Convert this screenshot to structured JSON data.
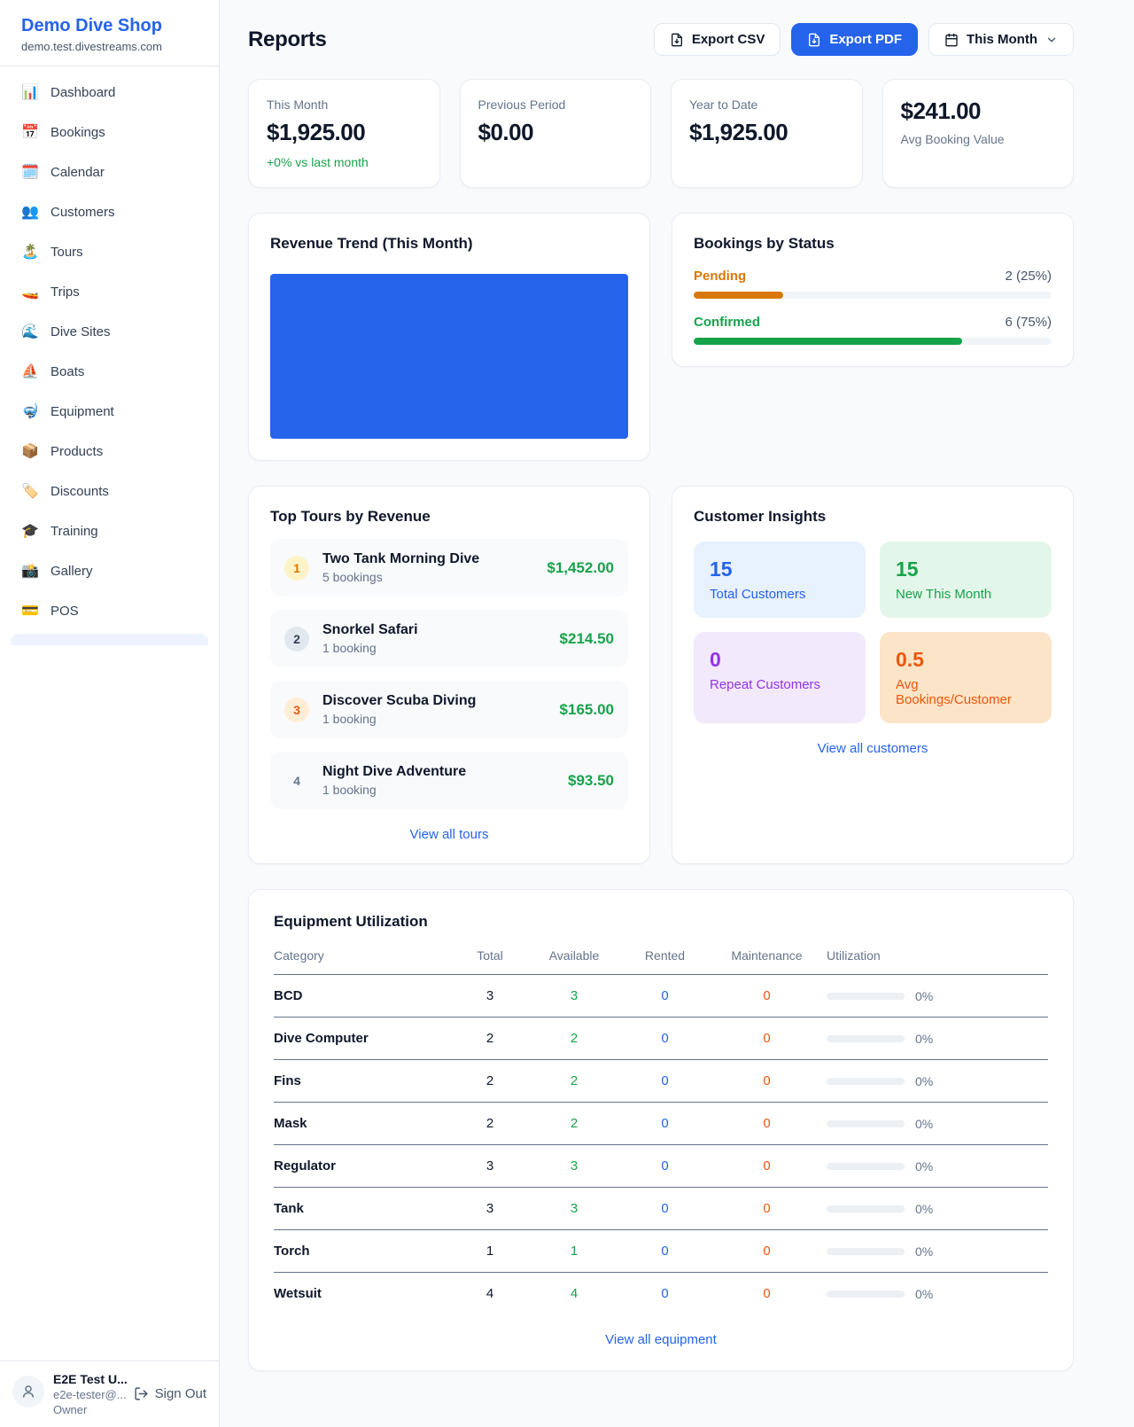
{
  "sidebar": {
    "brand": {
      "name": "Demo Dive Shop",
      "domain": "demo.test.divestreams.com"
    },
    "items": [
      {
        "icon": "📊",
        "label": "Dashboard"
      },
      {
        "icon": "📅",
        "label": "Bookings"
      },
      {
        "icon": "🗓️",
        "label": "Calendar"
      },
      {
        "icon": "👥",
        "label": "Customers"
      },
      {
        "icon": "🏝️",
        "label": "Tours"
      },
      {
        "icon": "🚤",
        "label": "Trips"
      },
      {
        "icon": "🌊",
        "label": "Dive Sites"
      },
      {
        "icon": "⛵",
        "label": "Boats"
      },
      {
        "icon": "🤿",
        "label": "Equipment"
      },
      {
        "icon": "📦",
        "label": "Products"
      },
      {
        "icon": "🏷️",
        "label": "Discounts"
      },
      {
        "icon": "🎓",
        "label": "Training"
      },
      {
        "icon": "📸",
        "label": "Gallery"
      },
      {
        "icon": "💳",
        "label": "POS"
      }
    ],
    "user": {
      "name": "E2E Test U...",
      "email": "e2e-tester@...",
      "role": "Owner",
      "sign_out_label": "Sign Out"
    }
  },
  "header": {
    "title": "Reports",
    "export_csv_label": "Export CSV",
    "export_pdf_label": "Export PDF",
    "period_label": "This Month"
  },
  "stats": [
    {
      "label": "This Month",
      "value": "$1,925.00",
      "delta": "+0% vs last month"
    },
    {
      "label": "Previous Period",
      "value": "$0.00"
    },
    {
      "label": "Year to Date",
      "value": "$1,925.00"
    },
    {
      "label": "Avg Booking Value",
      "value": "$241.00"
    }
  ],
  "revenue_trend": {
    "title": "Revenue Trend (This Month)"
  },
  "chart_data": {
    "type": "bar",
    "title": "Revenue Trend (This Month)",
    "categories": [
      "This Month"
    ],
    "values": [
      1925
    ],
    "unit": "USD",
    "bar_color": "#2563eb",
    "xlabel": "",
    "ylabel": "",
    "note": "Single solid full-width blue bar fills the entire plot area; no axes, ticks or labels are rendered"
  },
  "bookings_by_status": {
    "title": "Bookings by Status",
    "rows": [
      {
        "label": "Pending",
        "count_text": "2 (25%)",
        "pct": 25,
        "color": "#d97706"
      },
      {
        "label": "Confirmed",
        "count_text": "6 (75%)",
        "pct": 75,
        "color": "#16a34a"
      }
    ]
  },
  "top_tours": {
    "title": "Top Tours by Revenue",
    "rows": [
      {
        "rank": "1",
        "name": "Two Tank Morning Dive",
        "bookings": "5 bookings",
        "revenue": "$1,452.00"
      },
      {
        "rank": "2",
        "name": "Snorkel Safari",
        "bookings": "1 booking",
        "revenue": "$214.50"
      },
      {
        "rank": "3",
        "name": "Discover Scuba Diving",
        "bookings": "1 booking",
        "revenue": "$165.00"
      },
      {
        "rank": "4",
        "name": "Night Dive Adventure",
        "bookings": "1 booking",
        "revenue": "$93.50"
      }
    ],
    "view_all_label": "View all tours"
  },
  "customer_insights": {
    "title": "Customer Insights",
    "tiles": [
      {
        "value": "15",
        "label": "Total Customers",
        "color": "#2563eb"
      },
      {
        "value": "15",
        "label": "New This Month",
        "color": "#16a34a"
      },
      {
        "value": "0",
        "label": "Repeat Customers",
        "color": "#9333ea"
      },
      {
        "value": "0.5",
        "label": "Avg Bookings/Customer",
        "color": "#ea580c"
      }
    ],
    "view_all_label": "View all customers"
  },
  "equipment": {
    "title": "Equipment Utilization",
    "columns": [
      "Category",
      "Total",
      "Available",
      "Rented",
      "Maintenance",
      "Utilization"
    ],
    "rows": [
      {
        "category": "BCD",
        "total": "3",
        "available": "3",
        "rented": "0",
        "maintenance": "0",
        "utilization_pct": 0,
        "utilization_text": "0%"
      },
      {
        "category": "Dive Computer",
        "total": "2",
        "available": "2",
        "rented": "0",
        "maintenance": "0",
        "utilization_pct": 0,
        "utilization_text": "0%"
      },
      {
        "category": "Fins",
        "total": "2",
        "available": "2",
        "rented": "0",
        "maintenance": "0",
        "utilization_pct": 0,
        "utilization_text": "0%"
      },
      {
        "category": "Mask",
        "total": "2",
        "available": "2",
        "rented": "0",
        "maintenance": "0",
        "utilization_pct": 0,
        "utilization_text": "0%"
      },
      {
        "category": "Regulator",
        "total": "3",
        "available": "3",
        "rented": "0",
        "maintenance": "0",
        "utilization_pct": 0,
        "utilization_text": "0%"
      },
      {
        "category": "Tank",
        "total": "3",
        "available": "3",
        "rented": "0",
        "maintenance": "0",
        "utilization_pct": 0,
        "utilization_text": "0%"
      },
      {
        "category": "Torch",
        "total": "1",
        "available": "1",
        "rented": "0",
        "maintenance": "0",
        "utilization_pct": 0,
        "utilization_text": "0%"
      },
      {
        "category": "Wetsuit",
        "total": "4",
        "available": "4",
        "rented": "0",
        "maintenance": "0",
        "utilization_pct": 0,
        "utilization_text": "0%"
      }
    ],
    "view_all_label": "View all equipment"
  },
  "colors": {
    "accent_blue": "#2563eb",
    "green": "#16a34a",
    "orange_pending": "#d97706",
    "orange_deep": "#ea580c",
    "purple": "#9333ea",
    "page_bg": "#f8fafc",
    "card_bg": "#ffffff"
  }
}
